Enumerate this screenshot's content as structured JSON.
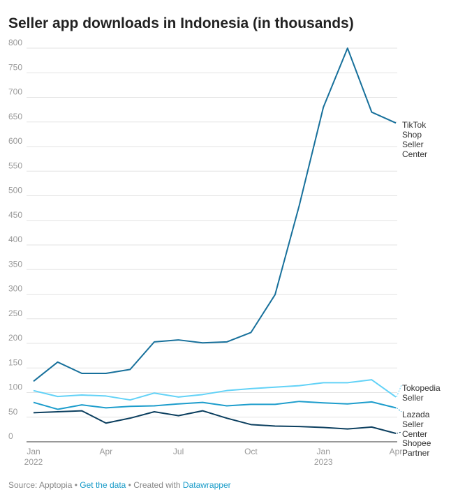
{
  "chart_data": {
    "type": "line",
    "title": "Seller app downloads in Indonesia (in thousands)",
    "xlabel": "",
    "ylabel": "",
    "ylim": [
      0,
      800
    ],
    "yticks": [
      0,
      50,
      100,
      150,
      200,
      250,
      300,
      350,
      400,
      450,
      500,
      550,
      600,
      650,
      700,
      750,
      800
    ],
    "x": [
      "Jan 2022",
      "Feb 2022",
      "Mar 2022",
      "Apr 2022",
      "May 2022",
      "Jun 2022",
      "Jul 2022",
      "Aug 2022",
      "Sep 2022",
      "Oct 2022",
      "Nov 2022",
      "Dec 2022",
      "Jan 2023",
      "Feb 2023",
      "Mar 2023",
      "Apr 2023"
    ],
    "xticks": [
      {
        "i": 0,
        "label": "Jan",
        "sub": "2022"
      },
      {
        "i": 3,
        "label": "Apr",
        "sub": ""
      },
      {
        "i": 6,
        "label": "Jul",
        "sub": ""
      },
      {
        "i": 9,
        "label": "Oct",
        "sub": ""
      },
      {
        "i": 12,
        "label": "Jan",
        "sub": "2023"
      },
      {
        "i": 15,
        "label": "Apr",
        "sub": ""
      }
    ],
    "series": [
      {
        "name": "TikTok Shop Seller Center",
        "label_lines": [
          "TikTok",
          "Shop",
          "Seller",
          "Center"
        ],
        "color": "#17709b",
        "values": [
          123,
          162,
          139,
          139,
          147,
          203,
          207,
          201,
          203,
          222,
          299,
          480,
          680,
          800,
          670,
          648
        ]
      },
      {
        "name": "Tokopedia Seller",
        "label_lines": [
          "Tokopedia",
          "Seller"
        ],
        "color": "#62d2f7",
        "values": [
          104,
          92,
          95,
          93,
          85,
          99,
          91,
          96,
          104,
          108,
          111,
          114,
          120,
          120,
          126,
          91
        ]
      },
      {
        "name": "Lazada Seller Center",
        "label_lines": [
          "Lazada",
          "Seller",
          "Center"
        ],
        "color": "#1d9dcc",
        "values": [
          80,
          66,
          75,
          69,
          72,
          73,
          77,
          80,
          73,
          76,
          76,
          82,
          79,
          77,
          81,
          69
        ]
      },
      {
        "name": "Shopee Partner",
        "label_lines": [
          "Shopee",
          "Partner"
        ],
        "color": "#0c3f5f",
        "values": [
          59,
          61,
          63,
          38,
          48,
          61,
          53,
          63,
          48,
          35,
          32,
          31,
          29,
          26,
          30,
          17
        ]
      }
    ]
  },
  "footer": {
    "source": "Source: Apptopia",
    "sep": " • ",
    "get_data": "Get the data",
    "created": "Created with ",
    "tool": "Datawrapper"
  }
}
